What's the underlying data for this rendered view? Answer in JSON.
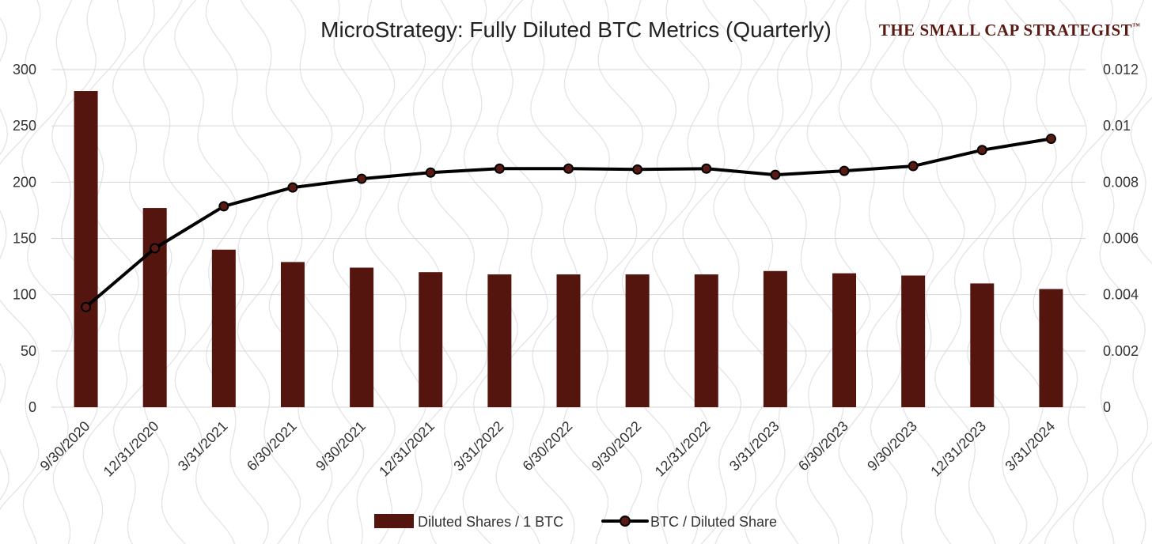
{
  "brand": {
    "text": "The Small Cap Strategist",
    "trademark": "™",
    "color": "#5a1a13"
  },
  "chart_data": {
    "type": "bar",
    "title": "MicroStrategy: Fully Diluted BTC Metrics (Quarterly)",
    "categories": [
      "9/30/2020",
      "12/31/2020",
      "3/31/2021",
      "6/30/2021",
      "9/30/2021",
      "12/31/2021",
      "3/31/2022",
      "6/30/2022",
      "9/30/2022",
      "12/31/2022",
      "3/31/2023",
      "6/30/2023",
      "9/30/2023",
      "12/31/2023",
      "3/31/2024"
    ],
    "series": [
      {
        "name": "Diluted Shares / 1 BTC",
        "type": "bar",
        "axis": "left",
        "color": "#55150f",
        "values": [
          281,
          177,
          140,
          129,
          124,
          120,
          118,
          118,
          118,
          118,
          121,
          119,
          117,
          110,
          105
        ]
      },
      {
        "name": "BTC / Diluted Share",
        "type": "line",
        "axis": "right",
        "color": "#000000",
        "marker_color": "#5a1a13",
        "values": [
          0.00356,
          0.00565,
          0.00714,
          0.00781,
          0.00812,
          0.00834,
          0.00848,
          0.00848,
          0.00845,
          0.00848,
          0.00826,
          0.0084,
          0.00857,
          0.00914,
          0.00954
        ]
      }
    ],
    "left_axis": {
      "ylim": [
        0,
        300
      ],
      "ticks": [
        "0",
        "50",
        "100",
        "150",
        "200",
        "250",
        "300"
      ]
    },
    "right_axis": {
      "ylim": [
        0,
        0.012
      ],
      "ticks": [
        "0",
        "0.002",
        "0.004",
        "0.006",
        "0.008",
        "0.01",
        "0.012"
      ]
    },
    "grid": true,
    "legend": "bottom"
  }
}
